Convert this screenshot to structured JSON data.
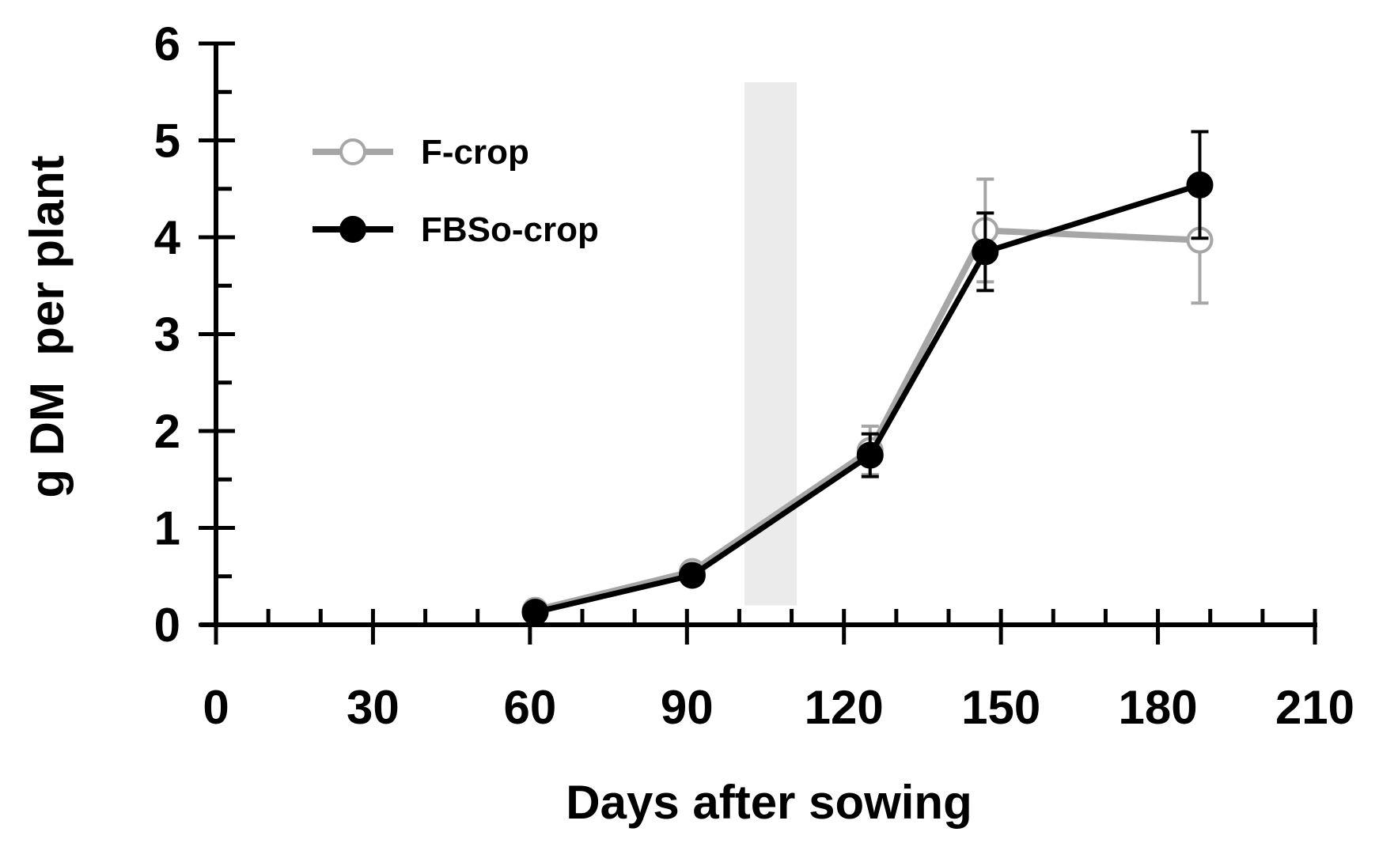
{
  "chart_data": {
    "type": "line",
    "xlabel": "Days after sowing",
    "ylabel": "g DM  per plant",
    "xlim": [
      0,
      210
    ],
    "ylim": [
      0,
      6
    ],
    "x_ticks": [
      0,
      30,
      60,
      90,
      120,
      150,
      180,
      210
    ],
    "x_tick_labels": [
      "0",
      "30",
      "60",
      "90",
      "120",
      "150",
      "180",
      "210"
    ],
    "x_minor_step": 10,
    "y_ticks": [
      0,
      1,
      2,
      3,
      4,
      5,
      6
    ],
    "y_tick_labels": [
      "0",
      "1",
      "2",
      "3",
      "4",
      "5",
      "6"
    ],
    "y_minor_step": 0.5,
    "grid": false,
    "legend_position": "top-left",
    "shaded_band": {
      "x_start": 101,
      "x_end": 111,
      "y_start": 0.2,
      "y_end": 5.6,
      "color": "#ebebeb"
    },
    "series": [
      {
        "name": "F-crop",
        "color": "#a6a6a6",
        "marker": "open-circle",
        "x": [
          61,
          91,
          125,
          147,
          188
        ],
        "y": [
          0.15,
          0.55,
          1.8,
          4.07,
          3.97
        ],
        "error": [
          0,
          0,
          0.25,
          0.53,
          0.65
        ]
      },
      {
        "name": "FBSo-crop",
        "color": "#000000",
        "marker": "filled-circle",
        "x": [
          61,
          91,
          125,
          147,
          188
        ],
        "y": [
          0.13,
          0.51,
          1.75,
          3.85,
          4.54
        ],
        "error": [
          0,
          0,
          0.22,
          0.4,
          0.55
        ]
      }
    ]
  }
}
